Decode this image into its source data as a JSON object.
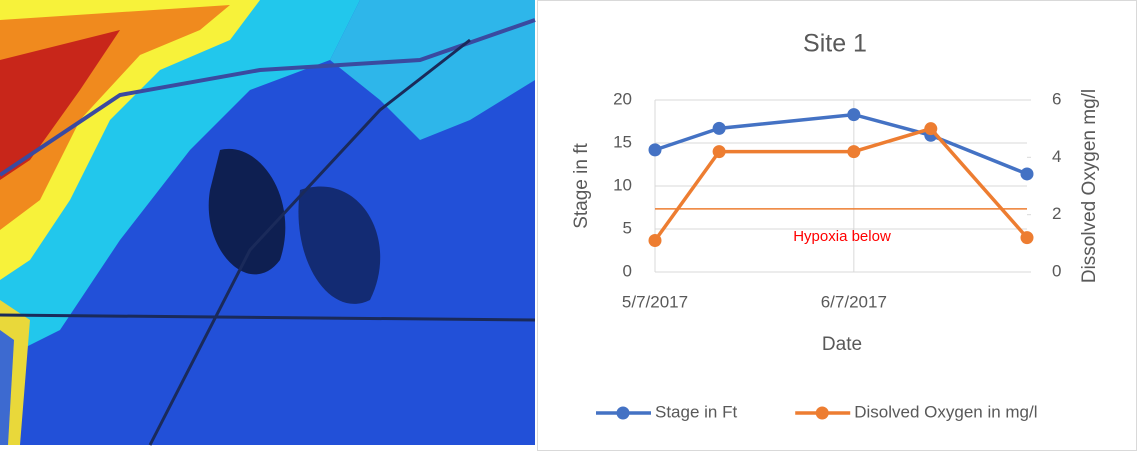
{
  "chart_data": {
    "type": "line",
    "title": "Site 1",
    "x_label": "Date",
    "y_label": "Stage in ft",
    "y2_label": "Dissolved Oxygen mg/l",
    "x": [
      "2017-05-07",
      "2017-05-17",
      "2017-06-07",
      "2017-06-19",
      "2017-07-04"
    ],
    "xlim": [
      "2017-05-07",
      "2017-07-04"
    ],
    "xticks": [
      {
        "value": "2017-05-07",
        "label": "5/7/2017"
      },
      {
        "value": "2017-06-07",
        "label": "6/7/2017"
      }
    ],
    "ylim": [
      0,
      20
    ],
    "yticks": [
      0,
      5,
      10,
      15,
      20
    ],
    "y2lim": [
      0,
      6
    ],
    "y2ticks": [
      0,
      2,
      4,
      6
    ],
    "grid": true,
    "legend": "bottom",
    "series": [
      {
        "name": "Stage in Ft",
        "color": "#4472c4",
        "values": [
          14.2,
          16.7,
          18.3,
          15.9,
          11.4
        ]
      },
      {
        "name": "Disolved Oxygen in mg/l",
        "color": "#ed7d31",
        "axis": "y2",
        "values": [
          1.1,
          4.2,
          4.2,
          5.0,
          1.2
        ]
      }
    ],
    "reference_line": {
      "value": 2.2,
      "axis": "y2",
      "color": "#ed7d31",
      "label": "Hypoxia below",
      "label_color": "#ff0000"
    }
  }
}
